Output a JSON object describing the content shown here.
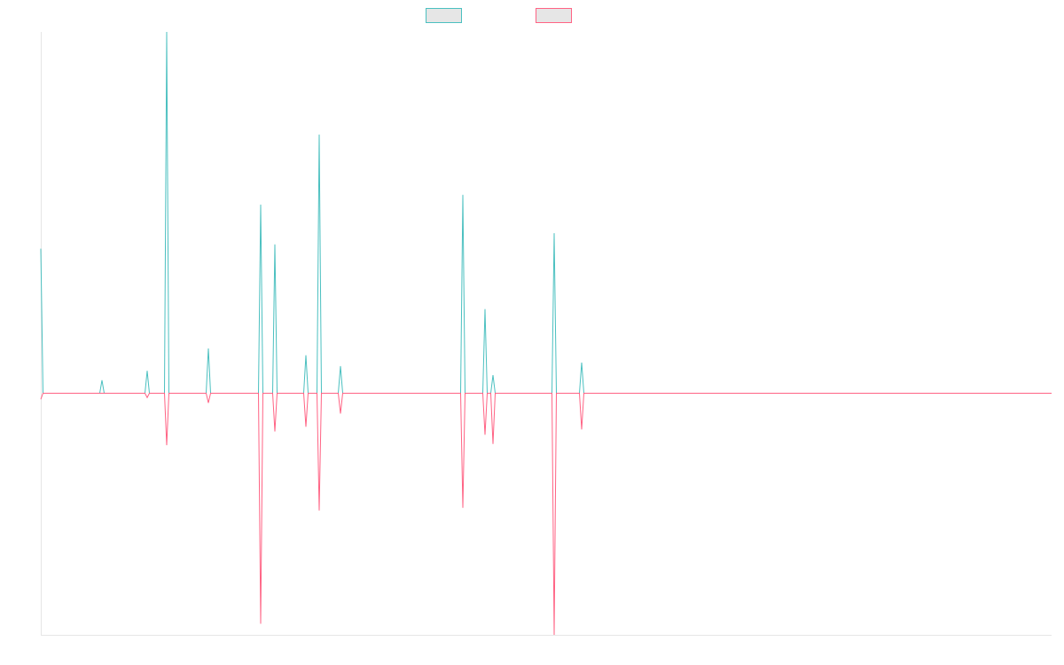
{
  "chart_data": {
    "type": "line",
    "title": "",
    "xlabel": "",
    "ylabel": "",
    "grid": false,
    "legend": "top-center",
    "x_range": [
      0,
      1140
    ],
    "ylim": [
      -1,
      1
    ],
    "series": [
      {
        "color": "#4bc0c0",
        "spikes": [
          {
            "x": 0,
            "y": 0.4
          },
          {
            "x": 69,
            "y": 0.036
          },
          {
            "x": 120,
            "y": 0.062
          },
          {
            "x": 142,
            "y": 1.0
          },
          {
            "x": 189,
            "y": 0.124
          },
          {
            "x": 248,
            "y": 0.522
          },
          {
            "x": 264,
            "y": 0.412
          },
          {
            "x": 299,
            "y": 0.105
          },
          {
            "x": 314,
            "y": 0.716
          },
          {
            "x": 338,
            "y": 0.075
          },
          {
            "x": 476,
            "y": 0.549
          },
          {
            "x": 501,
            "y": 0.233
          },
          {
            "x": 510,
            "y": 0.05
          },
          {
            "x": 579,
            "y": 0.443
          },
          {
            "x": 610,
            "y": 0.085
          }
        ]
      },
      {
        "color": "#ff6384",
        "spikes": [
          {
            "x": 0,
            "y": -0.025
          },
          {
            "x": 120,
            "y": -0.018
          },
          {
            "x": 142,
            "y": -0.215
          },
          {
            "x": 189,
            "y": -0.04
          },
          {
            "x": 248,
            "y": -0.954
          },
          {
            "x": 264,
            "y": -0.158
          },
          {
            "x": 299,
            "y": -0.139
          },
          {
            "x": 314,
            "y": -0.485
          },
          {
            "x": 338,
            "y": -0.084
          },
          {
            "x": 476,
            "y": -0.474
          },
          {
            "x": 501,
            "y": -0.172
          },
          {
            "x": 510,
            "y": -0.21
          },
          {
            "x": 579,
            "y": -1.0
          },
          {
            "x": 610,
            "y": -0.15
          }
        ]
      }
    ]
  },
  "colors": {
    "axis": "#e6e6e6",
    "legend_fill": "#e6e6e6",
    "background": "#ffffff"
  }
}
